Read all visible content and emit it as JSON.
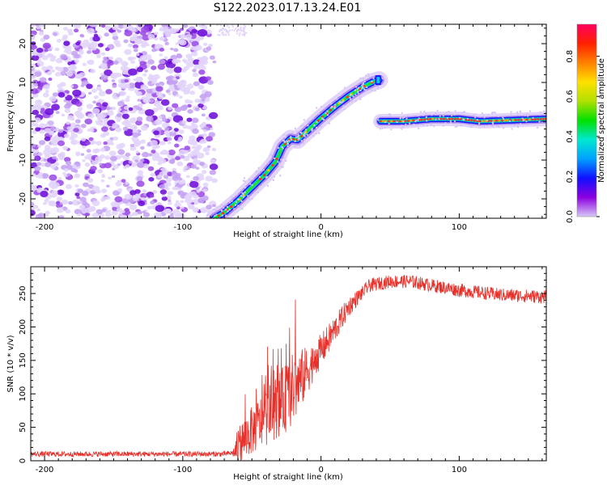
{
  "title": "S122.2023.017.13.24.E01",
  "chart_data": [
    {
      "type": "heatmap",
      "xlabel": "Height of straight line (km)",
      "ylabel": "Frequency (Hz)",
      "xlim": [
        -210,
        163
      ],
      "ylim": [
        -25,
        25
      ],
      "xticks": [
        -200,
        -100,
        0,
        100
      ],
      "yticks": [
        -20,
        -10,
        0,
        10,
        20
      ],
      "colorbar": {
        "label": "Normalized spectral amplitude",
        "range": [
          0.0,
          0.96
        ],
        "ticks": [
          "0.0",
          "0.2",
          "0.4",
          "0.6",
          "0.8"
        ],
        "colors": [
          "#d8c8f8",
          "#8c00e0",
          "#1010ff",
          "#00a0ff",
          "#00e8d0",
          "#00e000",
          "#b0e000",
          "#ffe000",
          "#ff8000",
          "#ff2000",
          "#ff0060"
        ]
      },
      "features": {
        "noise_region_x": [
          -210,
          -77
        ],
        "trace_1": {
          "x": [
            -77,
            -70,
            -60,
            -50,
            -40,
            -33,
            -28,
            -22,
            -17,
            -10,
            0,
            10,
            20,
            30,
            38,
            42
          ],
          "y": [
            -25,
            -23.5,
            -20.5,
            -17,
            -13.5,
            -10.5,
            -6.5,
            -4.5,
            -4.8,
            -2.5,
            0.8,
            3.8,
            6.5,
            8.8,
            10.2,
            10.6
          ]
        },
        "trace_2": {
          "x": [
            43,
            60,
            80,
            100,
            115,
            140,
            163
          ],
          "y": [
            0,
            0,
            0.6,
            0.6,
            0,
            0.3,
            0.6
          ]
        }
      }
    },
    {
      "type": "line",
      "xlabel": "Height of straight line (km)",
      "ylabel": "SNR (10 * v/v)",
      "xlim": [
        -210,
        163
      ],
      "ylim": [
        0,
        290
      ],
      "xticks": [
        -200,
        -100,
        0,
        100
      ],
      "yticks": [
        0,
        50,
        100,
        150,
        200,
        250
      ],
      "color": "#e8302a",
      "envelope": {
        "x": [
          -210,
          -150,
          -100,
          -70,
          -63,
          -55,
          -45,
          -35,
          -25,
          -15,
          -5,
          5,
          20,
          35,
          50,
          65,
          80,
          100,
          130,
          163
        ],
        "y": [
          10,
          10,
          10,
          10,
          12,
          35,
          55,
          75,
          95,
          120,
          150,
          180,
          230,
          262,
          268,
          268,
          262,
          255,
          248,
          245
        ]
      },
      "noise_amplitude": {
        "x": [
          -210,
          -64,
          -60,
          -20,
          -5,
          30,
          163
        ],
        "y": [
          4,
          4,
          30,
          55,
          28,
          10,
          10
        ]
      }
    }
  ]
}
